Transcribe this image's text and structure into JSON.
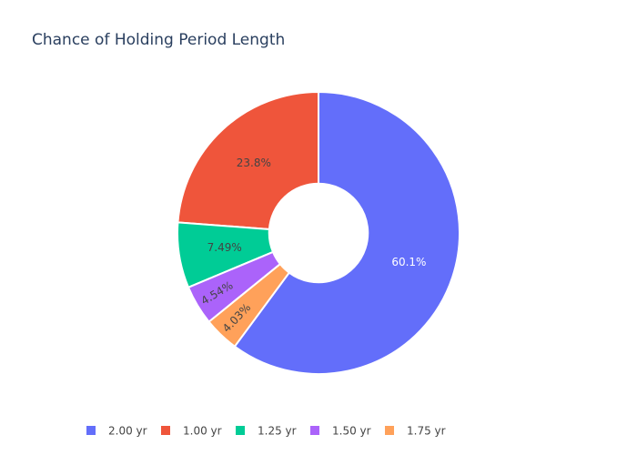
{
  "chart_data": {
    "type": "pie",
    "title": "Chance of Holding Period Length",
    "categories": [
      "2.00 yr",
      "1.00 yr",
      "1.25 yr",
      "1.50 yr",
      "1.75 yr"
    ],
    "values": [
      60.1,
      23.8,
      7.49,
      4.54,
      4.03
    ],
    "value_labels": [
      "60.1%",
      "23.8%",
      "7.49%",
      "4.54%",
      "4.03%"
    ],
    "colors": [
      "#636efa",
      "#EF553B",
      "#00cc96",
      "#ab63fa",
      "#FFA15A"
    ],
    "hole": 0.35,
    "legend": "bottom"
  }
}
